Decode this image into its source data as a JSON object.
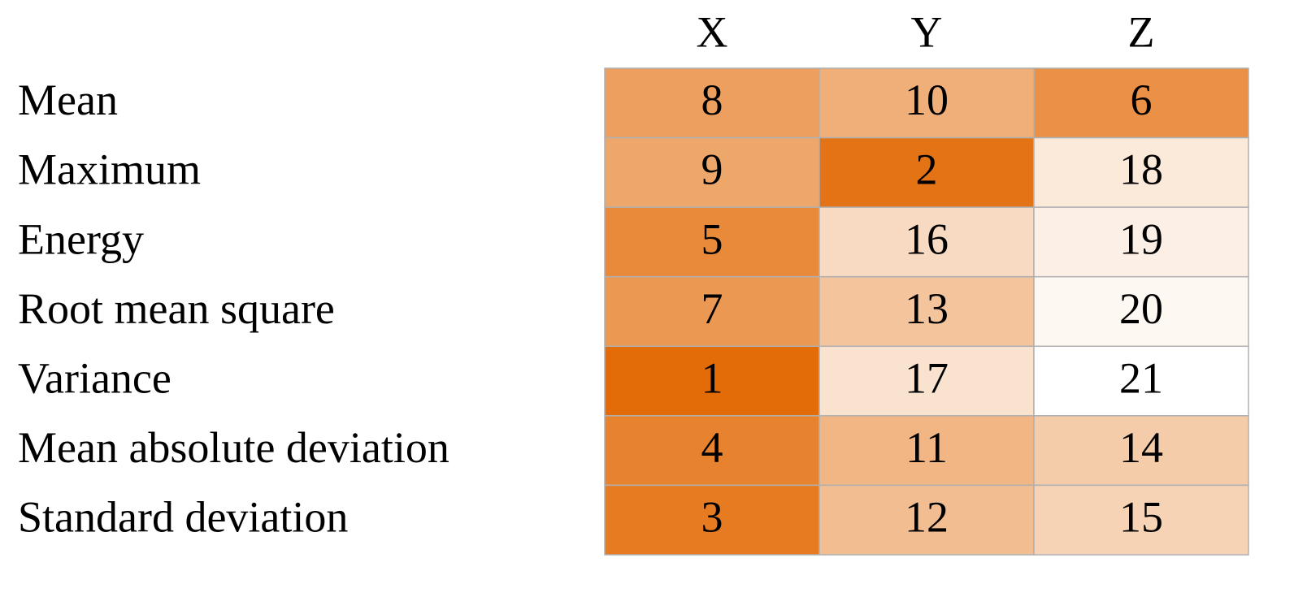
{
  "chart_data": {
    "type": "heatmap",
    "x_categories": [
      "X",
      "Y",
      "Z"
    ],
    "y_categories": [
      "Mean",
      "Maximum",
      "Energy",
      "Root mean square",
      "Variance",
      "Mean absolute deviation",
      "Standard deviation"
    ],
    "values": [
      [
        8,
        10,
        6
      ],
      [
        9,
        2,
        18
      ],
      [
        5,
        16,
        19
      ],
      [
        7,
        13,
        20
      ],
      [
        1,
        17,
        21
      ],
      [
        4,
        11,
        14
      ],
      [
        3,
        12,
        15
      ]
    ],
    "colors": [
      "#e36c09",
      "#ffffff"
    ]
  }
}
